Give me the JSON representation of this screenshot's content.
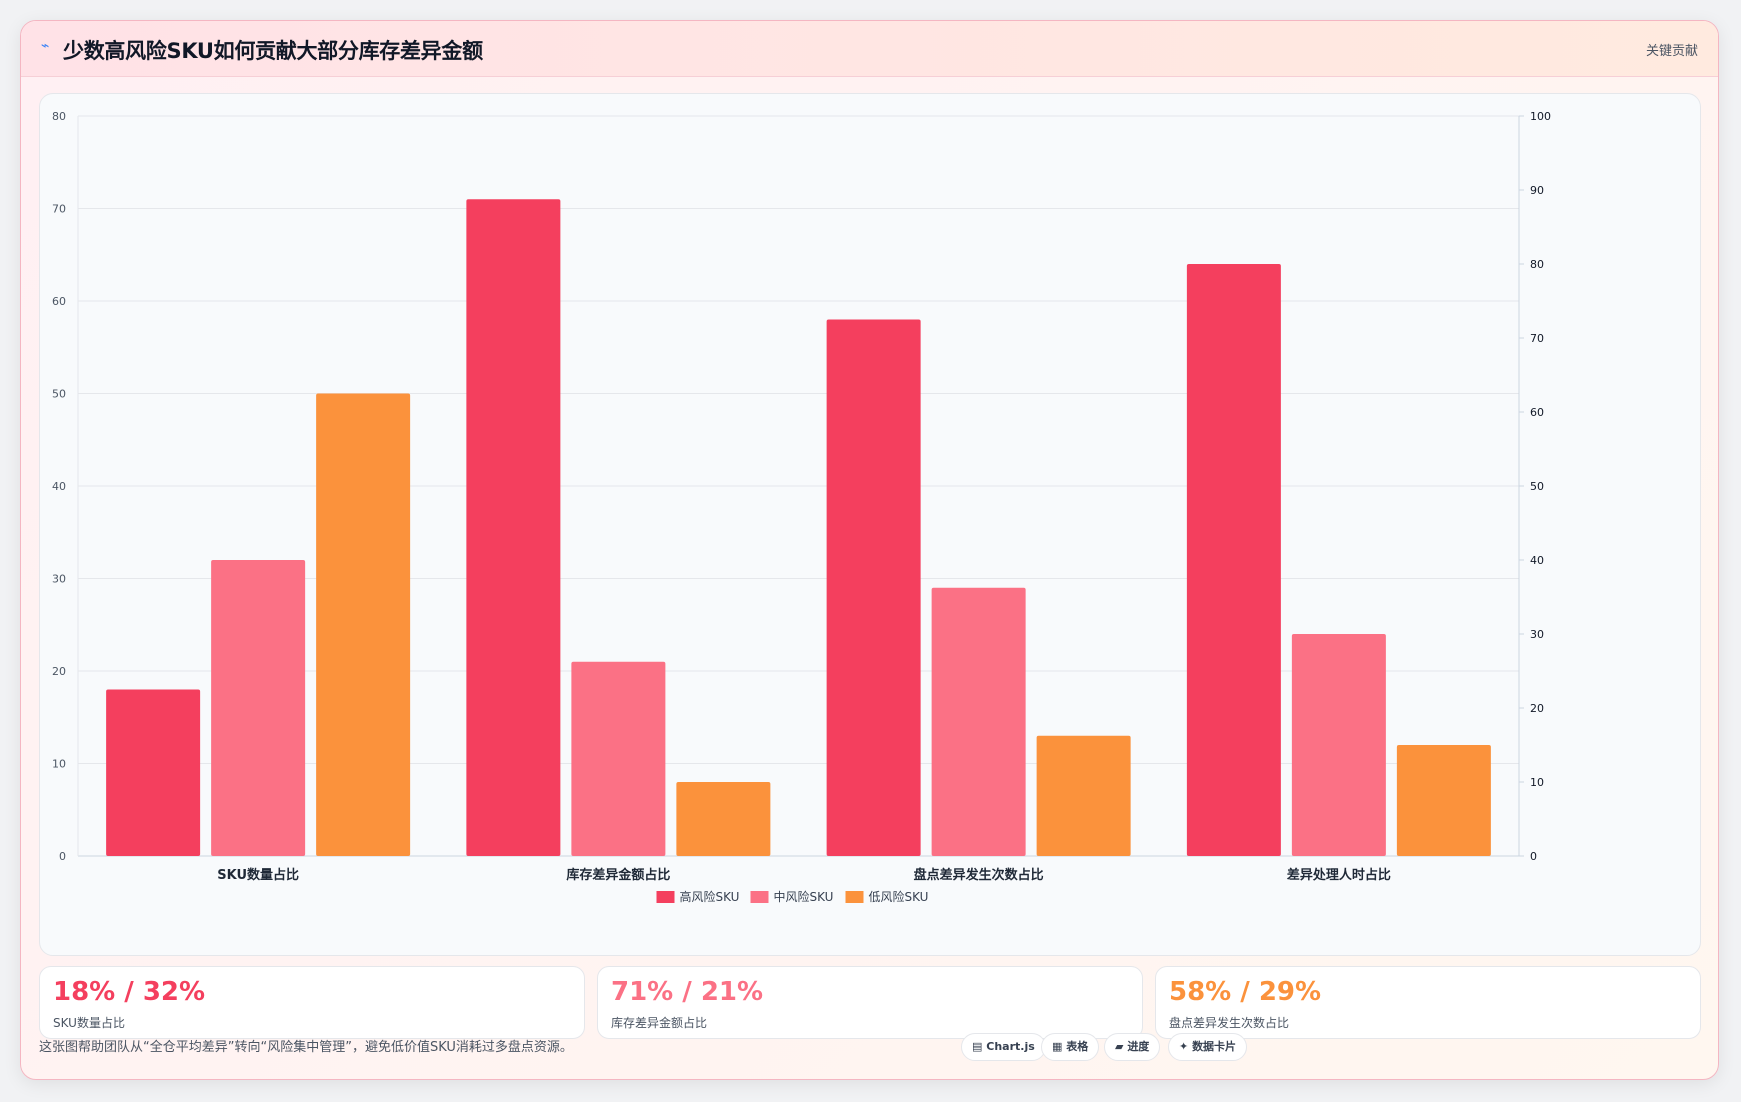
{
  "header": {
    "icon": "trend-line-icon",
    "title": "少数高风险SKU如何贡献大部分库存差异金额",
    "tag": "关键贡献"
  },
  "colors": {
    "high": "#f43f5e",
    "mid": "#fb7185",
    "low": "#fb923c"
  },
  "chart_data": {
    "type": "bar",
    "title": "",
    "xlabel": "",
    "ylabel": "",
    "categories": [
      "SKU数量占比",
      "库存差异金额占比",
      "盘点差异发生次数占比",
      "差异处理人时占比"
    ],
    "series": [
      {
        "name": "高风险SKU",
        "values": [
          18,
          71,
          58,
          64
        ]
      },
      {
        "name": "中风险SKU",
        "values": [
          32,
          21,
          29,
          24
        ]
      },
      {
        "name": "低风险SKU",
        "values": [
          50,
          8,
          13,
          12
        ]
      }
    ],
    "ylim": [
      0,
      80
    ],
    "yticks": [
      0,
      10,
      20,
      30,
      40,
      50,
      60,
      70,
      80
    ],
    "y2lim": [
      0,
      100
    ],
    "y2ticks": [
      0,
      10,
      20,
      30,
      40,
      50,
      60,
      70,
      80,
      90,
      100
    ],
    "grid": true,
    "legend": "bottom"
  },
  "stats": [
    {
      "value": "18% / 32%",
      "label": "SKU数量占比"
    },
    {
      "value": "71% / 21%",
      "label": "库存差异金额占比"
    },
    {
      "value": "58% / 29%",
      "label": "盘点差异发生次数占比"
    }
  ],
  "footer": {
    "note": "这张图帮助团队从“全仓平均差异”转向“风险集中管理”，避免低价值SKU消耗过多盘点资源。",
    "chips": [
      {
        "icon": "chart-icon",
        "label": "Chart.js"
      },
      {
        "icon": "table-icon",
        "label": "表格"
      },
      {
        "icon": "progress-icon",
        "label": "进度"
      },
      {
        "icon": "sparkle-icon",
        "label": "数据卡片"
      }
    ]
  }
}
